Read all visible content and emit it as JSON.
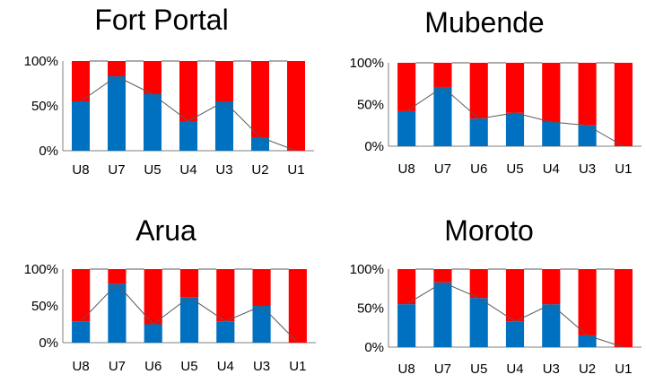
{
  "chart_data": [
    {
      "type": "bar",
      "title": "Fort Portal",
      "categories": [
        "U8",
        "U7",
        "U5",
        "U4",
        "U3",
        "U2",
        "U1"
      ],
      "y_ticks": [
        "0%",
        "50%",
        "100%"
      ],
      "ylim": [
        0,
        100
      ],
      "stacked": true,
      "series": [
        {
          "color": "#0070C0",
          "values": [
            55,
            83,
            63,
            33,
            55,
            15,
            0
          ]
        },
        {
          "color": "#FF0000",
          "values": [
            45,
            17,
            37,
            67,
            45,
            85,
            100
          ]
        }
      ]
    },
    {
      "type": "bar",
      "title": "Mubende",
      "categories": [
        "U8",
        "U7",
        "U6",
        "U5",
        "U4",
        "U3",
        "U1"
      ],
      "y_ticks": [
        "0%",
        "50%",
        "100%"
      ],
      "ylim": [
        0,
        100
      ],
      "stacked": true,
      "series": [
        {
          "color": "#0070C0",
          "values": [
            42,
            71,
            33,
            40,
            29,
            25,
            0
          ]
        },
        {
          "color": "#FF0000",
          "values": [
            58,
            29,
            67,
            60,
            71,
            75,
            100
          ]
        }
      ]
    },
    {
      "type": "bar",
      "title": "Arua",
      "categories": [
        "U8",
        "U7",
        "U6",
        "U5",
        "U4",
        "U3",
        "U1"
      ],
      "y_ticks": [
        "0%",
        "50%",
        "100%"
      ],
      "ylim": [
        0,
        100
      ],
      "stacked": true,
      "series": [
        {
          "color": "#0070C0",
          "values": [
            29,
            80,
            25,
            62,
            29,
            50,
            0
          ]
        },
        {
          "color": "#FF0000",
          "values": [
            71,
            20,
            75,
            38,
            71,
            50,
            100
          ]
        }
      ]
    },
    {
      "type": "bar",
      "title": "Moroto",
      "categories": [
        "U8",
        "U7",
        "U5",
        "U4",
        "U3",
        "U2",
        "U1"
      ],
      "y_ticks": [
        "0%",
        "50%",
        "100%"
      ],
      "ylim": [
        0,
        100
      ],
      "stacked": true,
      "series": [
        {
          "color": "#0070C0",
          "values": [
            55,
            83,
            63,
            33,
            55,
            15,
            0
          ]
        },
        {
          "color": "#FF0000",
          "values": [
            45,
            17,
            37,
            67,
            45,
            85,
            100
          ]
        }
      ]
    }
  ]
}
